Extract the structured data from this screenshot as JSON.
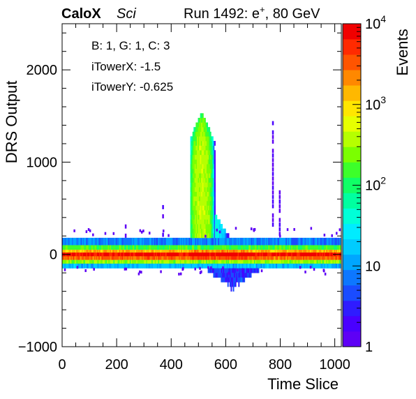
{
  "header": {
    "experiment": "CaloX",
    "tag": "Sci",
    "run_info": "Run 1492: e",
    "run_info_sup": "+",
    "run_info_tail": ", 80 GeV"
  },
  "annotations": {
    "board": "B: 1, G: 1, C: 3",
    "tower_x": "iTowerX: -1.5",
    "tower_y": "iTowerY: -0.625"
  },
  "chart_data": {
    "type": "heatmap",
    "xlabel": "Time Slice",
    "ylabel": "DRS Output",
    "zlabel": "Events",
    "xlim": [
      0,
      1024
    ],
    "ylim": [
      -1000,
      2500
    ],
    "z_scale": "log",
    "zlim": [
      1,
      10000
    ],
    "x_ticks": [
      0,
      200,
      400,
      600,
      800,
      1000
    ],
    "x_tick_labels": [
      "0",
      "200",
      "400",
      "600",
      "800",
      "1000"
    ],
    "y_ticks": [
      -1000,
      0,
      1000,
      2000
    ],
    "y_tick_labels": [
      "−1000",
      "0",
      "1000",
      "2000"
    ],
    "z_tick_labels": [
      {
        "value": 1,
        "base": "1",
        "exp": ""
      },
      {
        "value": 10,
        "base": "10",
        "exp": ""
      },
      {
        "value": 100,
        "base": "10",
        "exp": "2"
      },
      {
        "value": 1000,
        "base": "10",
        "exp": "3"
      },
      {
        "value": 10000,
        "base": "10",
        "exp": "4"
      }
    ],
    "palette": [
      "#5e00f5",
      "#4900ff",
      "#2f1cff",
      "#1a4cff",
      "#0d77ff",
      "#00a6ff",
      "#00ccff",
      "#00ecff",
      "#00ffd8",
      "#00ffa0",
      "#10ff66",
      "#3dff2a",
      "#7bff00",
      "#b6ff00",
      "#e6ff00",
      "#ffe600",
      "#ffb800",
      "#ff8800",
      "#ff5400",
      "#ff2a00",
      "#f00000"
    ],
    "baseline_bands": [
      {
        "y_range": [
          100,
          180
        ],
        "count": 8
      },
      {
        "y_range": [
          50,
          100
        ],
        "count": 150
      },
      {
        "y_range": [
          20,
          50
        ],
        "count": 1500
      },
      {
        "y_range": [
          -20,
          20
        ],
        "count": 8000
      },
      {
        "y_range": [
          -60,
          -20
        ],
        "count": 3000
      },
      {
        "y_range": [
          -100,
          -60
        ],
        "count": 300
      },
      {
        "y_range": [
          -150,
          -100
        ],
        "count": 15
      }
    ],
    "pulse": {
      "x_range": [
        470,
        560
      ],
      "peak_x": 510,
      "y_top": 1520,
      "dominant_peak": 1520,
      "peak_count": 400
    },
    "undershoot": {
      "x_range": [
        530,
        720
      ],
      "y_min": -370,
      "count": 3
    },
    "sparse_features": [
      {
        "x": 230,
        "y_range": [
          180,
          330
        ],
        "count": 1
      },
      {
        "x": 367,
        "y_range": [
          190,
          600
        ],
        "count": 1
      },
      {
        "x": 770,
        "y_range": [
          300,
          1450
        ],
        "count": 1
      },
      {
        "x": 795,
        "y_range": [
          150,
          700
        ],
        "count": 1
      }
    ]
  }
}
